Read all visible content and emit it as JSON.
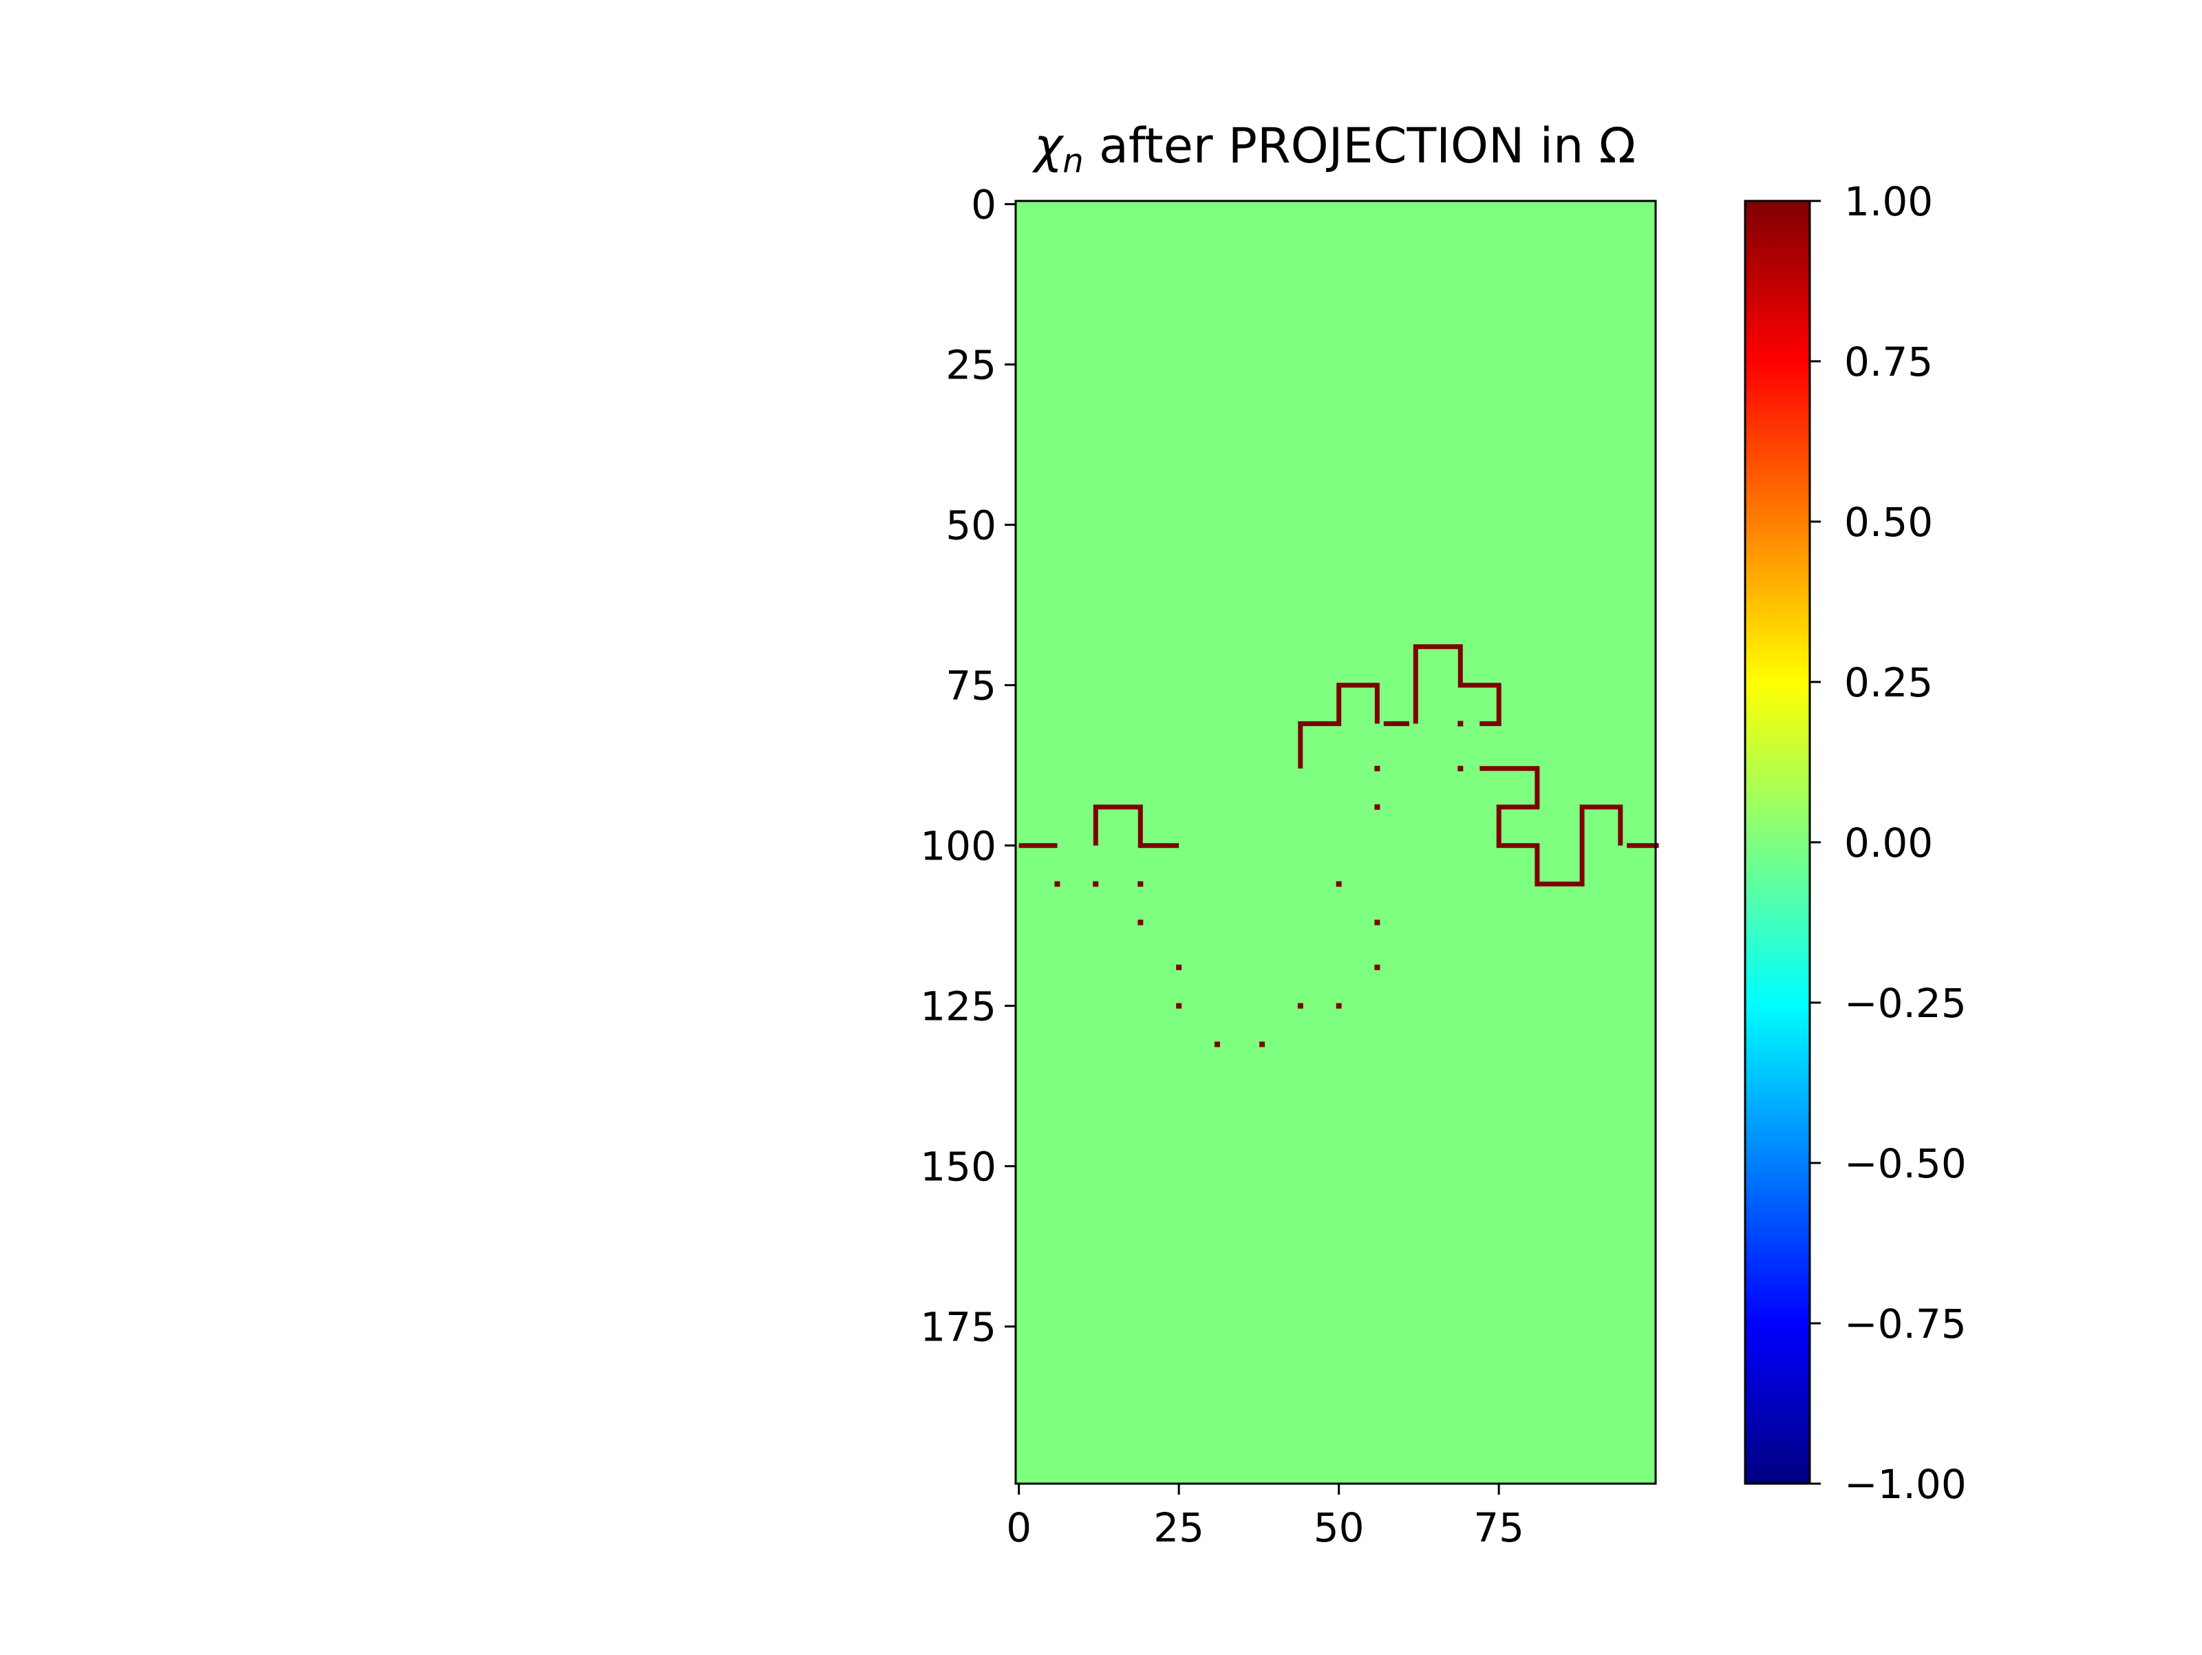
{
  "chart_data": {
    "type": "heatmap",
    "title": {
      "symbol": "χ",
      "subscript": "n",
      "rest": " after PROJECTION in Ω"
    },
    "xlabel": "",
    "ylabel": "",
    "grid": false,
    "dims": {
      "cols": 100,
      "rows": 200
    },
    "xlim": [
      -0.5,
      99.5
    ],
    "ylim": [
      199.5,
      -0.5
    ],
    "x_ticks": [
      0,
      25,
      50,
      75
    ],
    "y_ticks": [
      0,
      25,
      50,
      75,
      100,
      125,
      150,
      175
    ],
    "background_value": 0.0,
    "curve_value": 1.0,
    "colormap": "jet",
    "colors": {
      "background": "#7fff7f",
      "curve": "#7f0000"
    },
    "colorbar": {
      "vmin": -1.0,
      "vmax": 1.0,
      "ticks": [
        -1.0,
        -0.75,
        -0.5,
        -0.25,
        0.0,
        0.25,
        0.5,
        0.75,
        1.0
      ],
      "tick_labels": [
        "−1.00",
        "−0.75",
        "−0.50",
        "−0.25",
        "0.00",
        "0.25",
        "0.50",
        "0.75",
        "1.00"
      ],
      "stops": [
        "#00007f",
        "#0000ff",
        "#007fff",
        "#00ffff",
        "#7fff7f",
        "#ffff00",
        "#ff7f00",
        "#ff0000",
        "#7f0000"
      ]
    },
    "curve_segments": [
      [
        [
          0,
          100
        ],
        [
          6,
          100
        ]
      ],
      [
        [
          12,
          100
        ],
        [
          12,
          94
        ],
        [
          19,
          94
        ],
        [
          19,
          100
        ],
        [
          25,
          100
        ]
      ],
      [
        [
          44,
          88
        ],
        [
          44,
          81
        ],
        [
          50,
          81
        ],
        [
          50,
          75
        ],
        [
          56,
          75
        ],
        [
          56,
          81
        ]
      ],
      [
        [
          57,
          81
        ],
        [
          61,
          81
        ]
      ],
      [
        [
          62,
          81
        ],
        [
          62,
          69
        ],
        [
          69,
          69
        ],
        [
          69,
          75
        ],
        [
          75,
          75
        ],
        [
          75,
          81
        ],
        [
          72,
          81
        ]
      ],
      [
        [
          72,
          88
        ],
        [
          81,
          88
        ],
        [
          81,
          94
        ],
        [
          75,
          94
        ],
        [
          75,
          100
        ],
        [
          81,
          100
        ],
        [
          81,
          106
        ],
        [
          88,
          106
        ],
        [
          88,
          94
        ],
        [
          94,
          94
        ],
        [
          94,
          100
        ]
      ],
      [
        [
          95,
          100
        ],
        [
          100,
          100
        ]
      ]
    ],
    "curve_dots": [
      [
        6,
        106
      ],
      [
        12,
        106
      ],
      [
        19,
        106
      ],
      [
        19,
        112
      ],
      [
        25,
        119
      ],
      [
        25,
        125
      ],
      [
        31,
        131
      ],
      [
        38,
        131
      ],
      [
        44,
        125
      ],
      [
        50,
        125
      ],
      [
        56,
        119
      ],
      [
        56,
        112
      ],
      [
        50,
        106
      ],
      [
        56,
        94
      ],
      [
        56,
        88
      ],
      [
        69,
        88
      ],
      [
        69,
        81
      ]
    ]
  }
}
